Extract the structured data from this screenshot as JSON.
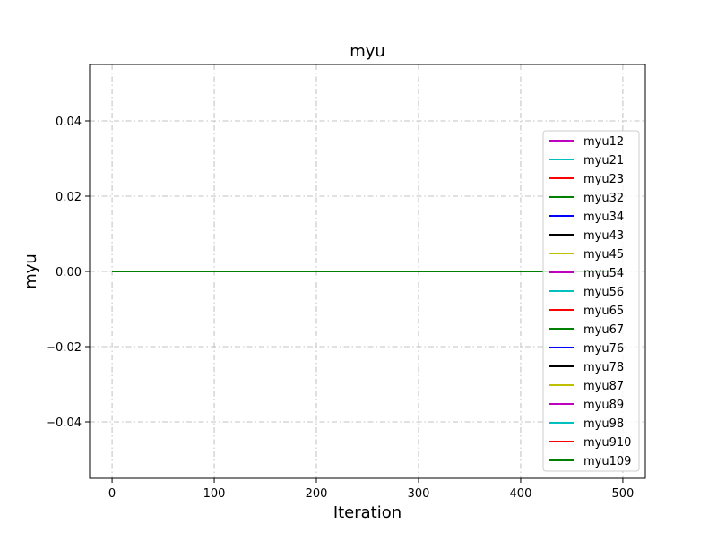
{
  "chart_data": {
    "type": "line",
    "title": "myu",
    "xlabel": "Iteration",
    "ylabel": "myu",
    "xlim": [
      -22,
      522
    ],
    "ylim": [
      -0.055,
      0.055
    ],
    "xticks": [
      0,
      100,
      200,
      300,
      400,
      500
    ],
    "xtick_labels": [
      "0",
      "100",
      "200",
      "300",
      "400",
      "500"
    ],
    "yticks": [
      -0.04,
      -0.02,
      0.0,
      0.02,
      0.04
    ],
    "ytick_labels": [
      "−0.04",
      "−0.02",
      "0.00",
      "0.02",
      "0.04"
    ],
    "grid": true,
    "grid_style": "dashdot",
    "grid_color": "#b0b0b0",
    "legend_position": "right",
    "x": [
      0,
      500
    ],
    "series": [
      {
        "name": "myu12",
        "color": "#bf00bf",
        "values": [
          0,
          0
        ]
      },
      {
        "name": "myu21",
        "color": "#00bfbf",
        "values": [
          0,
          0
        ]
      },
      {
        "name": "myu23",
        "color": "#ff0000",
        "values": [
          0,
          0
        ]
      },
      {
        "name": "myu32",
        "color": "#008000",
        "values": [
          0,
          0
        ]
      },
      {
        "name": "myu34",
        "color": "#0000ff",
        "values": [
          0,
          0
        ]
      },
      {
        "name": "myu43",
        "color": "#000000",
        "values": [
          0,
          0
        ]
      },
      {
        "name": "myu45",
        "color": "#bfbf00",
        "values": [
          0,
          0
        ]
      },
      {
        "name": "myu54",
        "color": "#bf00bf",
        "values": [
          0,
          0
        ]
      },
      {
        "name": "myu56",
        "color": "#00bfbf",
        "values": [
          0,
          0
        ]
      },
      {
        "name": "myu65",
        "color": "#ff0000",
        "values": [
          0,
          0
        ]
      },
      {
        "name": "myu67",
        "color": "#008000",
        "values": [
          0,
          0
        ]
      },
      {
        "name": "myu76",
        "color": "#0000ff",
        "values": [
          0,
          0
        ]
      },
      {
        "name": "myu78",
        "color": "#000000",
        "values": [
          0,
          0
        ]
      },
      {
        "name": "myu87",
        "color": "#bfbf00",
        "values": [
          0,
          0
        ]
      },
      {
        "name": "myu89",
        "color": "#bf00bf",
        "values": [
          0,
          0
        ]
      },
      {
        "name": "myu98",
        "color": "#00bfbf",
        "values": [
          0,
          0
        ]
      },
      {
        "name": "myu910",
        "color": "#ff0000",
        "values": [
          0,
          0
        ]
      },
      {
        "name": "myu109",
        "color": "#008000",
        "values": [
          0,
          0
        ]
      }
    ]
  }
}
